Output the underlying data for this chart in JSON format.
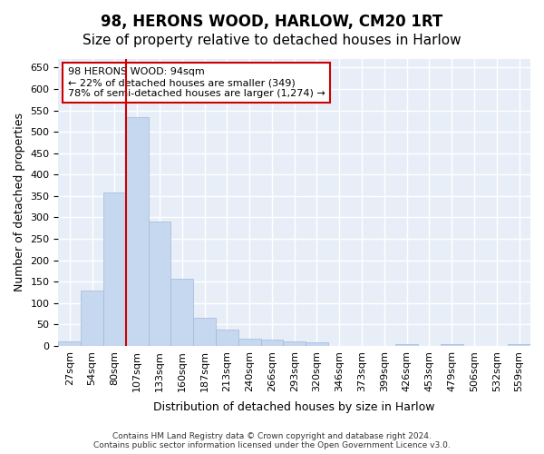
{
  "title": "98, HERONS WOOD, HARLOW, CM20 1RT",
  "subtitle": "Size of property relative to detached houses in Harlow",
  "xlabel": "Distribution of detached houses by size in Harlow",
  "ylabel": "Number of detached properties",
  "bar_values": [
    10,
    130,
    358,
    535,
    290,
    157,
    65,
    38,
    17,
    14,
    10,
    8,
    0,
    0,
    0,
    5,
    0,
    4,
    0,
    0,
    3
  ],
  "bar_labels": [
    "27sqm",
    "54sqm",
    "80sqm",
    "107sqm",
    "133sqm",
    "160sqm",
    "187sqm",
    "213sqm",
    "240sqm",
    "266sqm",
    "293sqm",
    "320sqm",
    "346sqm",
    "373sqm",
    "399sqm",
    "426sqm",
    "453sqm",
    "479sqm",
    "506sqm",
    "532sqm",
    "559sqm"
  ],
  "bar_color": "#c5d8f0",
  "bar_edge_color": "#a0b8d8",
  "vline_color": "#cc0000",
  "annotation_text": "98 HERONS WOOD: 94sqm\n← 22% of detached houses are smaller (349)\n78% of semi-detached houses are larger (1,274) →",
  "annotation_box_color": "#ffffff",
  "annotation_box_edge": "#cc0000",
  "ylim": [
    0,
    670
  ],
  "yticks": [
    0,
    50,
    100,
    150,
    200,
    250,
    300,
    350,
    400,
    450,
    500,
    550,
    600,
    650
  ],
  "background_color": "#e8eef8",
  "grid_color": "#ffffff",
  "footer": "Contains HM Land Registry data © Crown copyright and database right 2024.\nContains public sector information licensed under the Open Government Licence v3.0.",
  "title_fontsize": 12,
  "subtitle_fontsize": 11,
  "label_fontsize": 9,
  "tick_fontsize": 8,
  "property_sqm": 94,
  "bin_edges": [
    27,
    54,
    80,
    107,
    133,
    160,
    187,
    213,
    240,
    266,
    293,
    320,
    346,
    373,
    399,
    426,
    453,
    479,
    506,
    532,
    559
  ]
}
